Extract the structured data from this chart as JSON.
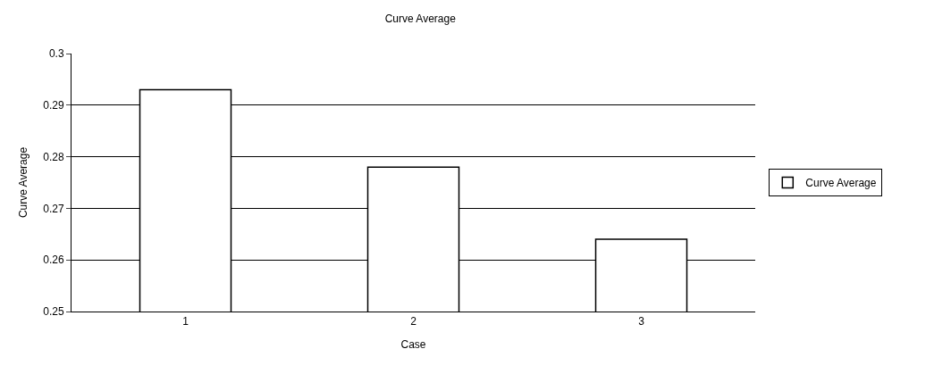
{
  "chart_data": {
    "type": "bar",
    "title": "Curve Average",
    "xlabel": "Case",
    "ylabel": "Curve Average",
    "categories": [
      "1",
      "2",
      "3"
    ],
    "series": [
      {
        "name": "Curve Average",
        "color": "#ffffff",
        "values": [
          0.293,
          0.278,
          0.264
        ]
      }
    ],
    "ylim": [
      0.25,
      0.3
    ],
    "yticks": [
      0.25,
      0.26,
      0.27,
      0.28,
      0.29,
      0.3
    ],
    "grid": "y",
    "legend": "right"
  }
}
